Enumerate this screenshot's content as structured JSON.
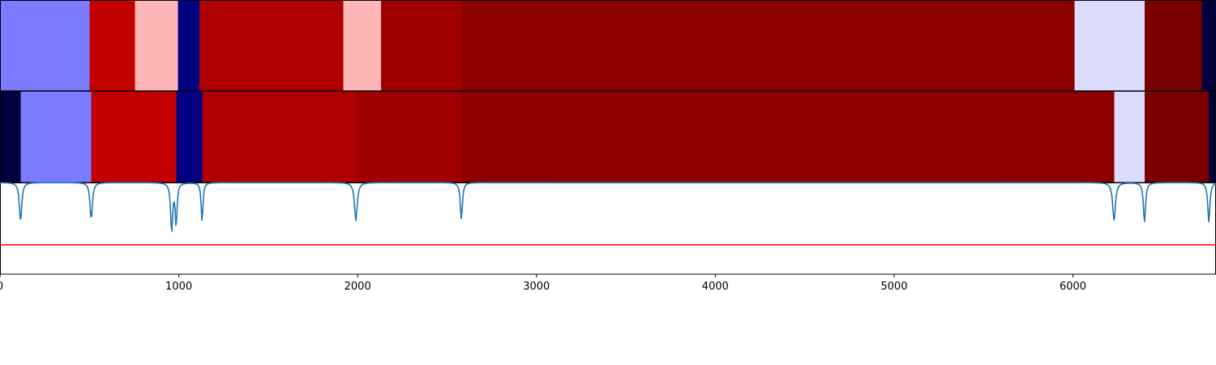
{
  "chart_data": {
    "type": "heatmap",
    "title": "",
    "xlabel": "",
    "ylabel": "",
    "xlim": [
      0,
      6800
    ],
    "x_ticks": [
      0,
      1000,
      2000,
      3000,
      4000,
      5000,
      6000
    ],
    "x_tick_labels": [
      "0",
      "1000",
      "2000",
      "3000",
      "4000",
      "5000",
      "6000"
    ],
    "grid": false,
    "legend": "none",
    "rows": [
      {
        "segments": [
          {
            "start": 0,
            "end": 500,
            "color": "#7b7bff"
          },
          {
            "start": 500,
            "end": 755,
            "color": "#c20000"
          },
          {
            "start": 755,
            "end": 995,
            "color": "#ffb6b6"
          },
          {
            "start": 995,
            "end": 1115,
            "color": "#000080"
          },
          {
            "start": 1115,
            "end": 1920,
            "color": "#ae0000"
          },
          {
            "start": 1920,
            "end": 2130,
            "color": "#ffb6b6"
          },
          {
            "start": 2130,
            "end": 2580,
            "color": "#9e0000"
          },
          {
            "start": 2580,
            "end": 6010,
            "color": "#8d0000"
          },
          {
            "start": 6010,
            "end": 6400,
            "color": "#dcdcff"
          },
          {
            "start": 6400,
            "end": 6720,
            "color": "#7a0000"
          },
          {
            "start": 6720,
            "end": 6800,
            "color": "#00003e"
          }
        ]
      },
      {
        "segments": [
          {
            "start": 0,
            "end": 115,
            "color": "#00003e"
          },
          {
            "start": 115,
            "end": 510,
            "color": "#7b7bff"
          },
          {
            "start": 510,
            "end": 985,
            "color": "#c20000"
          },
          {
            "start": 985,
            "end": 1130,
            "color": "#000080"
          },
          {
            "start": 1130,
            "end": 1990,
            "color": "#ae0000"
          },
          {
            "start": 1990,
            "end": 2580,
            "color": "#9e0000"
          },
          {
            "start": 2580,
            "end": 6230,
            "color": "#8d0000"
          },
          {
            "start": 6230,
            "end": 6400,
            "color": "#dcdcff"
          },
          {
            "start": 6400,
            "end": 6760,
            "color": "#7a0000"
          },
          {
            "start": 6760,
            "end": 6800,
            "color": "#00003e"
          }
        ]
      }
    ],
    "signal": {
      "color": "#1f77b4",
      "ylim": [
        -1.0,
        0.0
      ],
      "baseline": 0,
      "dips": [
        {
          "x": 115,
          "depth": -0.42,
          "width": 8
        },
        {
          "x": 510,
          "depth": -0.4,
          "width": 8
        },
        {
          "x": 960,
          "depth": -0.52,
          "width": 7
        },
        {
          "x": 985,
          "depth": -0.45,
          "width": 6
        },
        {
          "x": 1130,
          "depth": -0.43,
          "width": 6
        },
        {
          "x": 1990,
          "depth": -0.42,
          "width": 9
        },
        {
          "x": 2580,
          "depth": -0.4,
          "width": 7
        },
        {
          "x": 6230,
          "depth": -0.42,
          "width": 9
        },
        {
          "x": 6400,
          "depth": -0.44,
          "width": 7
        },
        {
          "x": 6760,
          "depth": -0.44,
          "width": 7
        }
      ],
      "threshold": {
        "y": -0.68,
        "color": "#ff0000"
      }
    }
  }
}
